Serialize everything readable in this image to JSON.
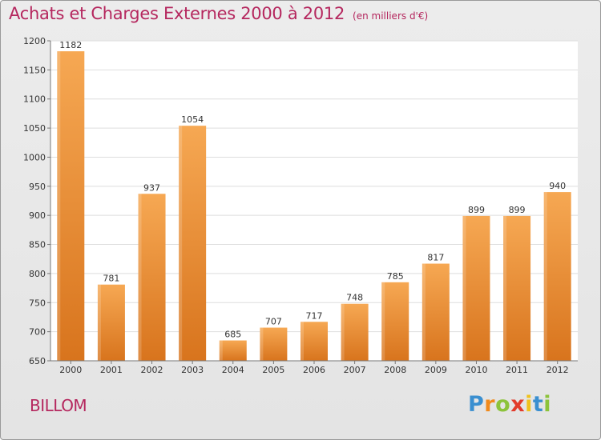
{
  "chart_data": {
    "type": "bar",
    "title": "Achats et Charges Externes 2000 à 2012",
    "subtitle": "(en milliers d'€)",
    "categories": [
      "2000",
      "2001",
      "2002",
      "2003",
      "2004",
      "2005",
      "2006",
      "2007",
      "2008",
      "2009",
      "2010",
      "2011",
      "2012"
    ],
    "values": [
      1182,
      781,
      937,
      1054,
      685,
      707,
      717,
      748,
      785,
      817,
      899,
      899,
      940
    ],
    "ylim": [
      650,
      1200
    ],
    "yticks": [
      650,
      700,
      750,
      800,
      850,
      900,
      950,
      1000,
      1050,
      1100,
      1150,
      1200
    ],
    "grid": true,
    "bar_color_top": "#f6a853",
    "bar_color_bottom": "#d8741d"
  },
  "commune": "BILLOM",
  "brand": {
    "letters": [
      "P",
      "r",
      "o",
      "x",
      "i",
      "t",
      "i"
    ],
    "colors": [
      "#3a8fd0",
      "#f08a1c",
      "#8cc33b",
      "#e23b2b",
      "#f0c21c",
      "#3a8fd0",
      "#8cc33b"
    ]
  }
}
